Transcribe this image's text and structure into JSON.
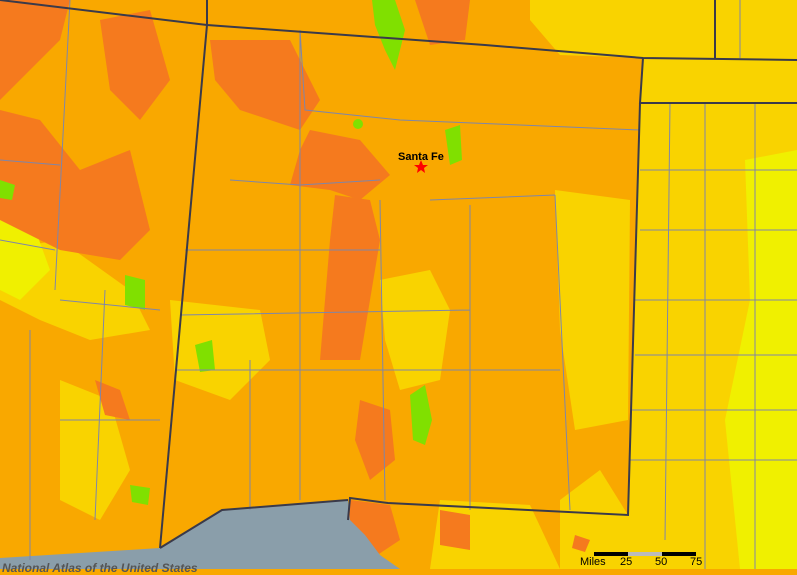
{
  "map": {
    "city": {
      "name": "Santa Fe",
      "marker": "star-icon"
    },
    "scale_bar": {
      "unit_label": "Miles",
      "ticks": [
        "25",
        "50",
        "75"
      ]
    },
    "credit": "National Atlas of the United States",
    "colors": {
      "base_orange": "#f9a800",
      "dark_orange": "#f57a1e",
      "yellow": "#f9d300",
      "bright_yellow": "#f0f000",
      "green": "#80e000",
      "mexico_gray": "#8a9eaa",
      "state_border": "#3a3a4a",
      "county_border": "#7f86a8",
      "city_marker": "#ff0000"
    }
  }
}
